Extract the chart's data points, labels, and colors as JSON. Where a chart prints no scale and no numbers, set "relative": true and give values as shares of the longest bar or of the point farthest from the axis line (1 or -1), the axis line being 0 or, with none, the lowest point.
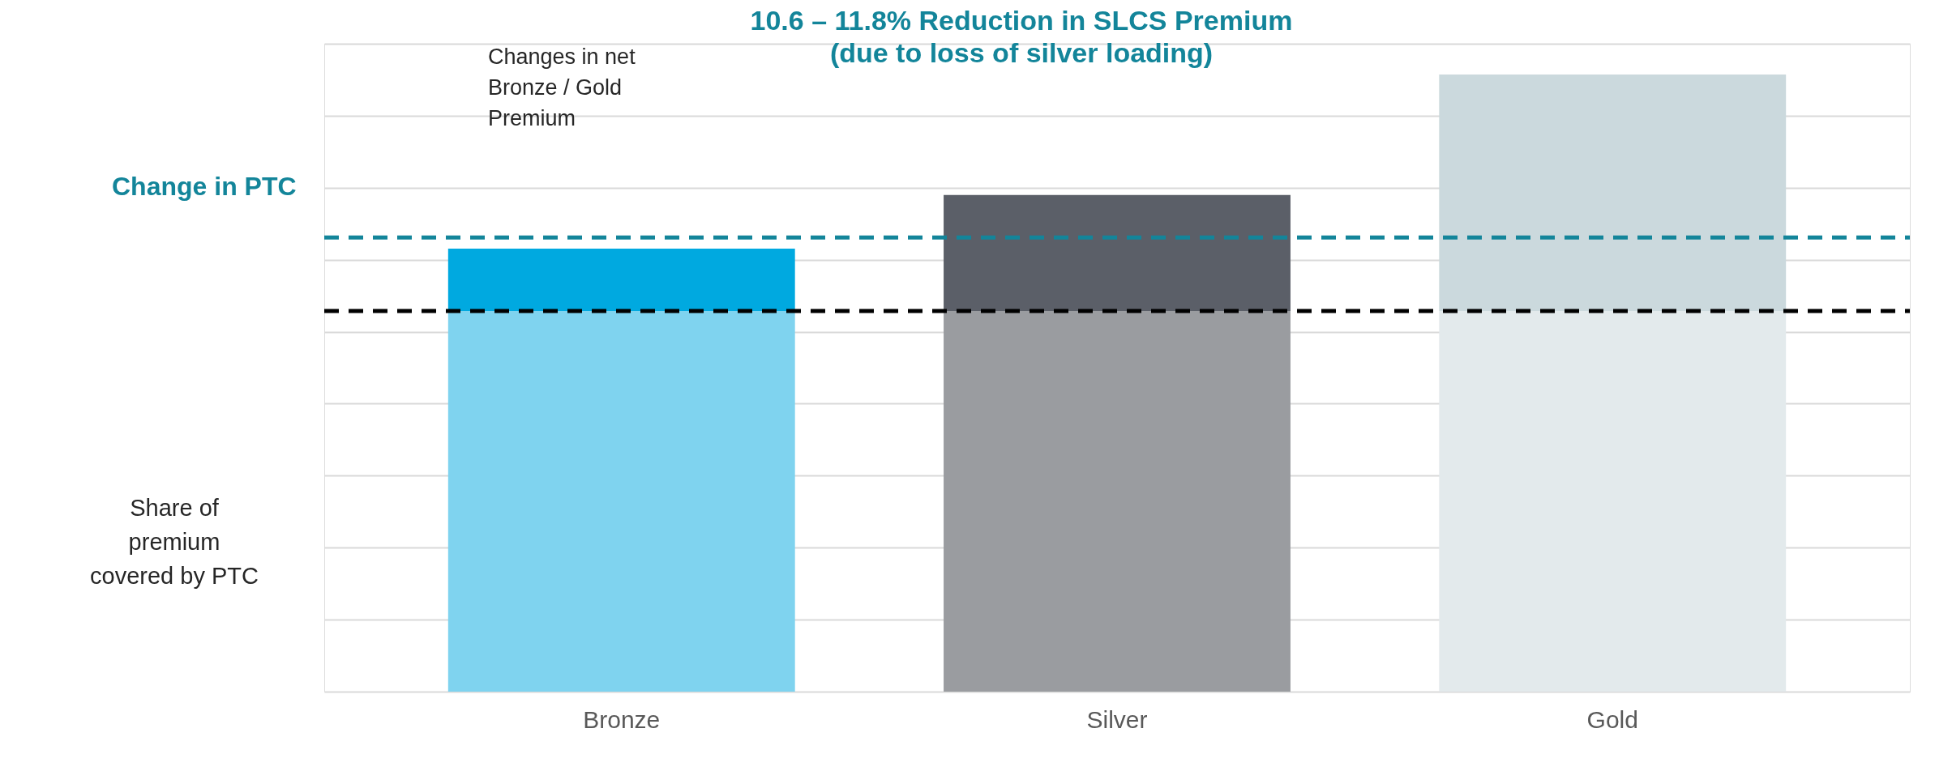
{
  "chart_data": {
    "type": "bar",
    "stacked": true,
    "relative": true,
    "grid": "y",
    "categories": [
      "Bronze",
      "Silver",
      "Gold"
    ],
    "series": [
      {
        "colors": [
          "#7fd3ef",
          "#9a9ca0",
          "#e3eaec"
        ],
        "values": [
          0.617,
          0.617,
          0.617
        ]
      },
      {
        "colors": [
          "#00a9e0",
          "#5b5f68",
          "#cbd9dd"
        ],
        "values": [
          0.101,
          0.188,
          0.383
        ]
      }
    ],
    "ref_lines": [
      {
        "axis": "y",
        "value": 0.617,
        "color": "#000000",
        "line_style": "dashed"
      },
      {
        "axis": "y",
        "value": 0.736,
        "color": "#13859a",
        "line_style": "dashed"
      }
    ],
    "annotations": [
      "10.6 – 11.8% Reduction in SLCS Premium\n(due to loss of silver loading)",
      "Changes in  net\nBronze / Gold\nPremium",
      "Change in PTC",
      "Share of\npremium\ncovered by PTC"
    ]
  }
}
